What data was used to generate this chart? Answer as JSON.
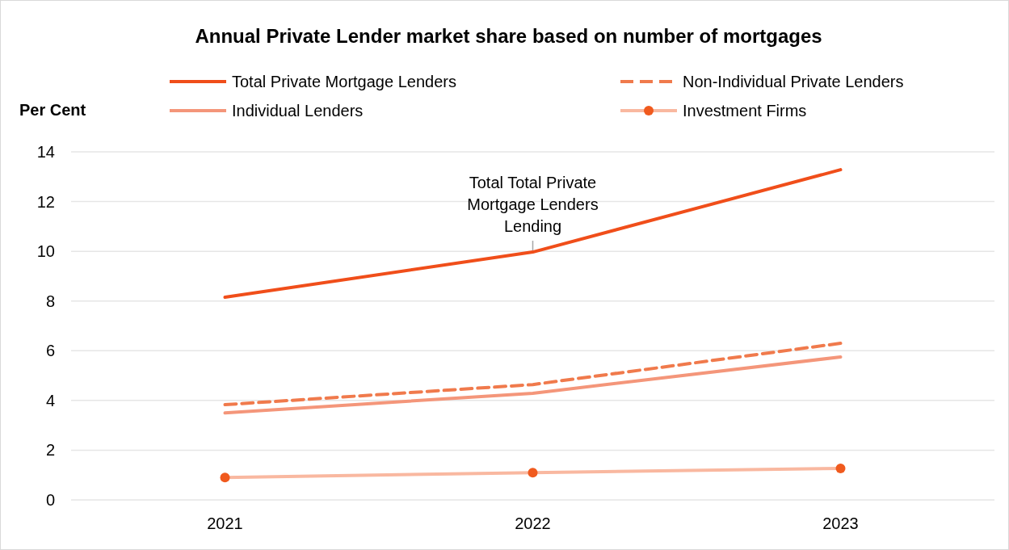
{
  "chart_data": {
    "type": "line",
    "title": "Annual Private Lender market share based on number of mortgages",
    "ylabel": "Per Cent",
    "categories": [
      "2021",
      "2022",
      "2023"
    ],
    "series": [
      {
        "name": "Total Private Mortgage Lenders",
        "color": "#f04e1a",
        "values": [
          8.15,
          9.97,
          13.28
        ]
      },
      {
        "name": "Non-Individual Private Lenders",
        "color": "#f07a4c",
        "line_style": "dashed",
        "values": [
          3.83,
          4.64,
          6.3
        ]
      },
      {
        "name": "Individual Lenders",
        "color": "#f4967a",
        "values": [
          3.5,
          4.29,
          5.75
        ]
      },
      {
        "name": "Investment Firms",
        "color": "#f9b8a0",
        "marker": "circle",
        "colors": [
          "#f05a1e",
          "#f05a1e",
          "#f05a1e"
        ],
        "values": [
          0.9,
          1.1,
          1.27
        ]
      }
    ],
    "ylim": [
      0,
      14
    ],
    "yticks": [
      0,
      2,
      4,
      6,
      8,
      10,
      12,
      14
    ],
    "grid": "y",
    "legend": "top",
    "annotations": [
      {
        "text": "Total Total Private Mortgage Lenders Lending",
        "x": "2022",
        "y": 9.97
      }
    ]
  }
}
